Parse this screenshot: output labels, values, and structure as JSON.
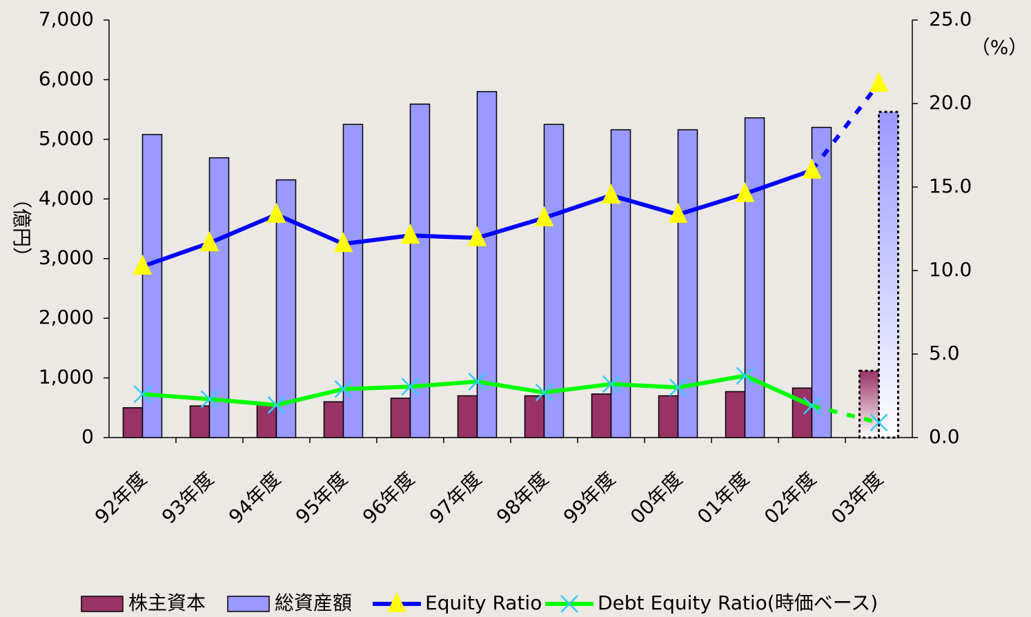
{
  "chart_data": {
    "type": "bar_line",
    "ylabel": "（億円）",
    "y2label": "（%）",
    "categories": [
      "92年度",
      "93年度",
      "94年度",
      "95年度",
      "96年度",
      "97年度",
      "98年度",
      "99年度",
      "00年度",
      "01年度",
      "02年度",
      "03年度"
    ],
    "series": [
      {
        "name": "株主資本",
        "type": "bar",
        "color": "#993366",
        "values": [
          500,
          530,
          550,
          600,
          660,
          700,
          700,
          730,
          700,
          770,
          830,
          1120
        ]
      },
      {
        "name": "総資産額",
        "type": "bar",
        "color": "#9999ff",
        "values": [
          5080,
          4690,
          4320,
          5250,
          5590,
          5800,
          5250,
          5160,
          5160,
          5360,
          5200,
          5460
        ]
      },
      {
        "name": "Equity Ratio",
        "type": "line",
        "axis": "y2",
        "color": "#0000ff",
        "marker_color": "#ffff00",
        "values": [
          10.25,
          11.65,
          13.35,
          11.6,
          12.1,
          11.95,
          13.15,
          14.5,
          13.35,
          14.6,
          16.0,
          21.2
        ]
      },
      {
        "name": "Debt Equity Ratio(時価ベース)",
        "type": "line",
        "axis": "y2",
        "color": "#00ff00",
        "marker_color": "#33ccff",
        "values": [
          2.6,
          2.3,
          1.95,
          2.9,
          3.05,
          3.35,
          2.7,
          3.2,
          3.0,
          3.7,
          1.9,
          0.9
        ]
      }
    ],
    "ylim": [
      0,
      7000
    ],
    "yticks": [
      0,
      {
        "value": 1000,
        "label": "1,000"
      },
      {
        "value": 2000,
        "label": "2,000"
      },
      {
        "value": 3000,
        "label": "3,000"
      },
      {
        "value": 4000,
        "label": "4,000"
      },
      {
        "value": 5000,
        "label": "5,000"
      },
      {
        "value": 6000,
        "label": "6,000"
      },
      {
        "value": 7000,
        "label": "7,000"
      }
    ],
    "y2lim": [
      0,
      25
    ],
    "y2ticks": [
      {
        "value": 0,
        "label": "0.0"
      },
      {
        "value": 5,
        "label": "5.0"
      },
      {
        "value": 10,
        "label": "10.0"
      },
      {
        "value": 15,
        "label": "15.0"
      },
      {
        "value": 20,
        "label": "20.0"
      },
      {
        "value": 25,
        "label": "25.0"
      }
    ],
    "legend": "bottom"
  }
}
